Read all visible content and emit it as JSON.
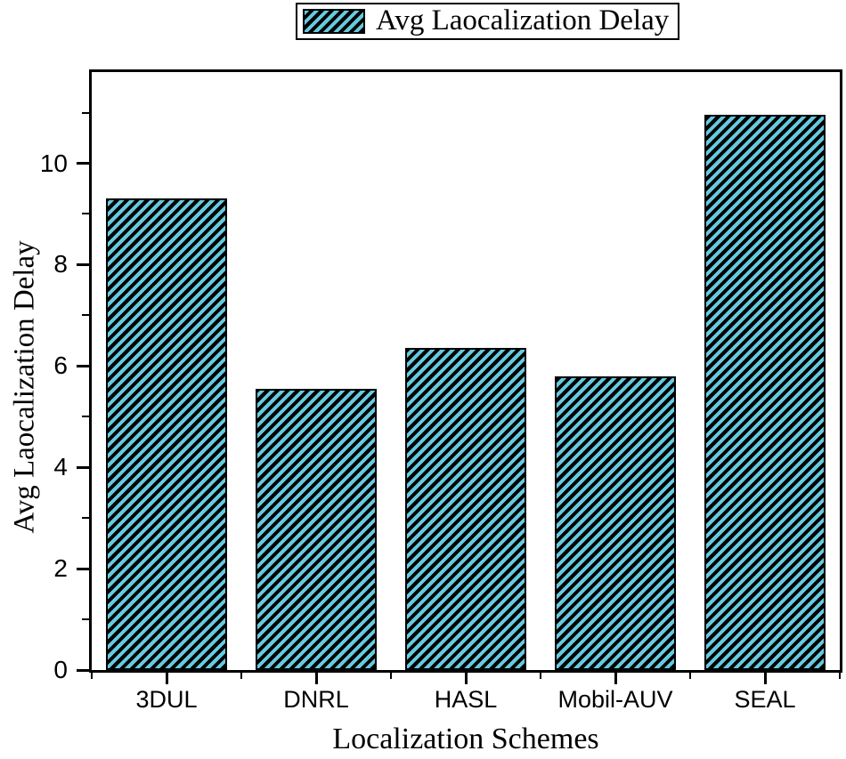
{
  "legend": {
    "items": [
      {
        "label": "Avg Laocalization Delay",
        "swatch": "hatched-bar-sample"
      }
    ]
  },
  "chart_data": {
    "type": "bar",
    "title": "",
    "categories": [
      "3DUL",
      "DNRL",
      "HASL",
      "Mobil-AUV",
      "SEAL"
    ],
    "values": [
      9.3,
      5.55,
      6.35,
      5.8,
      10.95
    ],
    "series_name": "Avg Laocalization Delay",
    "xlabel": "Localization Schemes",
    "ylabel": "Avg Laocalization Delay",
    "ylim": [
      0,
      11.8
    ],
    "yticks_major": [
      0,
      2,
      4,
      6,
      8,
      10
    ],
    "yticks_minor": [
      1,
      3,
      5,
      7,
      9,
      11
    ],
    "grid": false,
    "legend_position": "top-center",
    "bar_style": {
      "fill": "#66CADF",
      "hatch": "diagonal-forward-slash",
      "hatch_color": "#000000",
      "edge_color": "#000000"
    },
    "axis_color": "#000000",
    "background_color": "#ffffff"
  }
}
